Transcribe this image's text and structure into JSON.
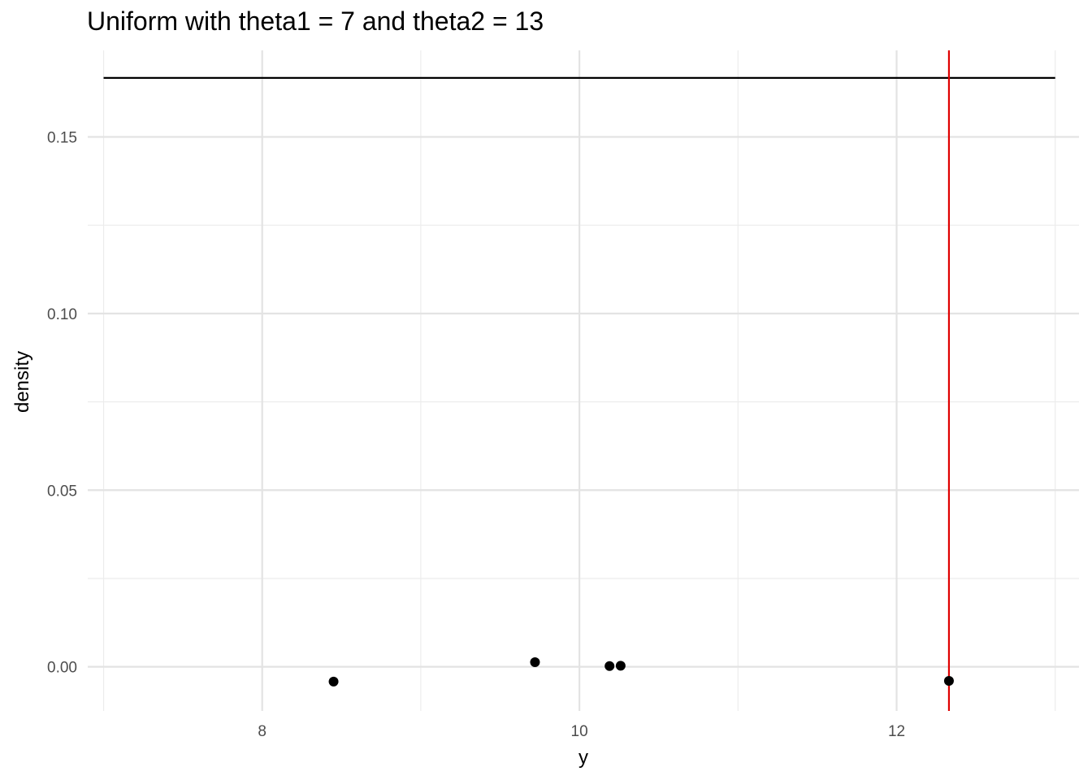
{
  "chart_data": {
    "type": "scatter",
    "title": "Uniform with theta1 = 7 and theta2 = 13",
    "xlabel": "y",
    "ylabel": "density",
    "xlim": [
      6.9,
      13.15
    ],
    "ylim": [
      -0.0125,
      0.1745
    ],
    "x_ticks": [
      8,
      10,
      12
    ],
    "x_tick_labels": [
      "8",
      "10",
      "12"
    ],
    "x_minor_ticks": [
      7,
      9,
      11,
      13
    ],
    "y_ticks": [
      0.0,
      0.05,
      0.1,
      0.15
    ],
    "y_tick_labels": [
      "0.00",
      "0.05",
      "0.10",
      "0.15"
    ],
    "y_minor_ticks": [
      0.025,
      0.075,
      0.125
    ],
    "grid": true,
    "density_segment": {
      "x": [
        7,
        13
      ],
      "y": 0.1667,
      "color": "#000000"
    },
    "vertical_line": {
      "x": 12.33,
      "color": "#e00000"
    },
    "points": [
      {
        "x": 8.45,
        "y": -0.0042
      },
      {
        "x": 9.72,
        "y": 0.0013
      },
      {
        "x": 10.19,
        "y": 0.0002
      },
      {
        "x": 10.26,
        "y": 0.0003
      },
      {
        "x": 12.33,
        "y": -0.004
      }
    ],
    "point_color": "#000000"
  }
}
